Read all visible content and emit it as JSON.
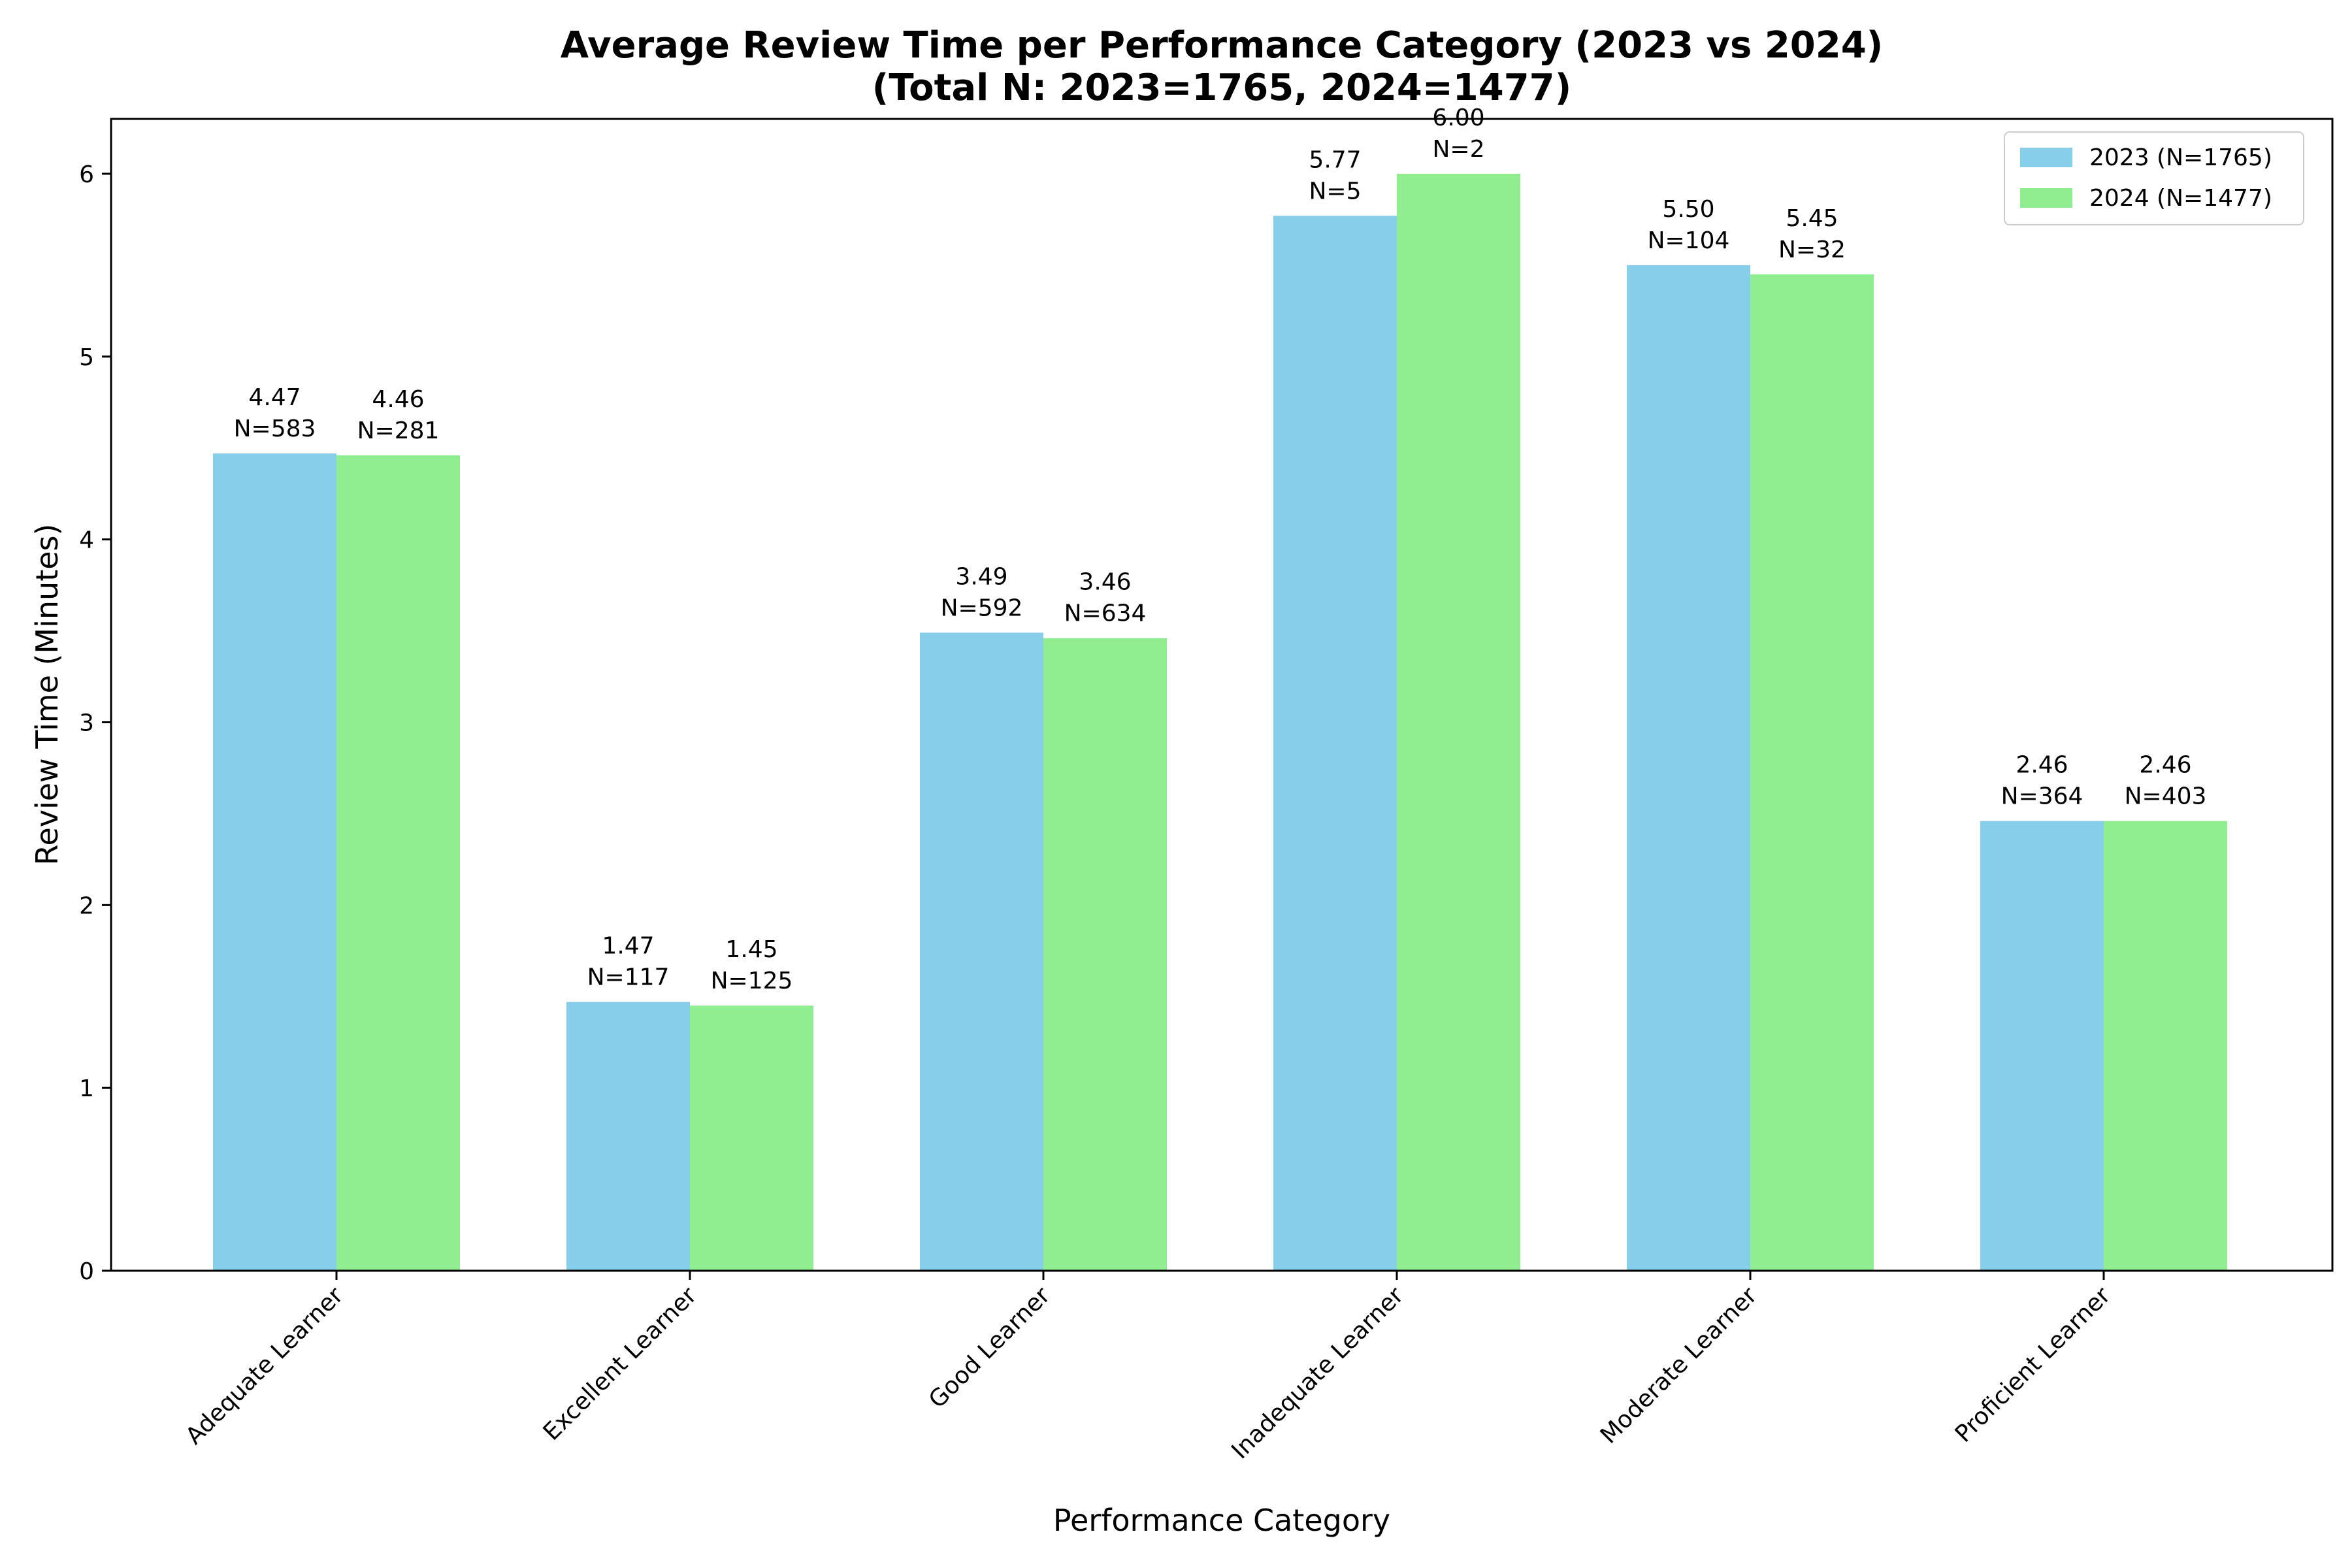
{
  "chart_data": {
    "type": "bar",
    "title": "Average Review Time per Performance Category (2023 vs 2024)",
    "subtitle": "(Total N: 2023=1765, 2024=1477)",
    "xlabel": "Performance Category",
    "ylabel": "Review Time (Minutes)",
    "categories": [
      "Adequate Learner",
      "Excellent Learner",
      "Good Learner",
      "Inadequate Learner",
      "Moderate Learner",
      "Proficient Learner"
    ],
    "series": [
      {
        "name": "2023 (N=1765)",
        "color": "#87CEEB",
        "values": [
          4.47,
          1.47,
          3.49,
          5.77,
          5.5,
          2.46
        ],
        "value_labels": [
          "4.47",
          "1.47",
          "3.49",
          "5.77",
          "5.50",
          "2.46"
        ],
        "n_labels": [
          "N=583",
          "N=117",
          "N=592",
          "N=5",
          "N=104",
          "N=364"
        ]
      },
      {
        "name": "2024 (N=1477)",
        "color": "#90EE90",
        "values": [
          4.46,
          1.45,
          3.46,
          6.0,
          5.45,
          2.46
        ],
        "value_labels": [
          "4.46",
          "1.45",
          "3.46",
          "6.00",
          "5.45",
          "2.46"
        ],
        "n_labels": [
          "N=281",
          "N=125",
          "N=634",
          "N=2",
          "N=32",
          "N=403"
        ]
      }
    ],
    "ylim": [
      0,
      6.3
    ],
    "yticks": [
      "0",
      "1",
      "2",
      "3",
      "4",
      "5",
      "6"
    ],
    "grid": false,
    "legend": "top-right"
  }
}
